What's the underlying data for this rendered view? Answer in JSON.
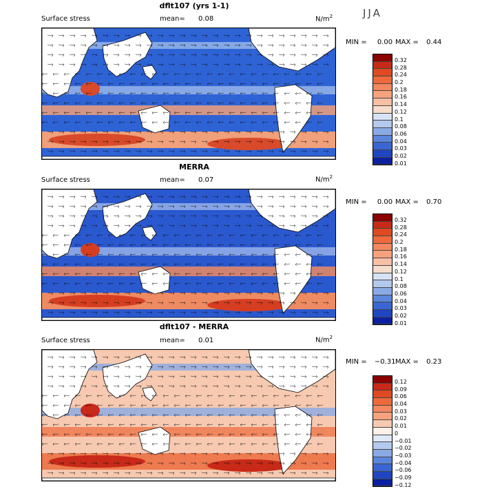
{
  "season": "JJA",
  "units_text": "N/m",
  "units_sup": "2",
  "panels": [
    {
      "title": "dflt107 (yrs 1-1)",
      "field": "Surface stress",
      "mean_label": "mean=",
      "mean_value": "0.08",
      "min_label": "MIN =",
      "min_value": "0.00",
      "max_label": "MAX =",
      "max_value": "0.44",
      "colorbar": {
        "levels": [
          "0.32",
          "0.28",
          "0.24",
          "0.2",
          "0.18",
          "0.16",
          "0.14",
          "0.12",
          "0.1",
          "0.08",
          "0.06",
          "0.04",
          "0.03",
          "0.02",
          "0.01"
        ],
        "colors": [
          "#8b0000",
          "#c82918",
          "#e04a22",
          "#ee6a3c",
          "#f5885e",
          "#f7a27e",
          "#f7bfa3",
          "#f6ddcb",
          "#d6e3f5",
          "#b4c9ee",
          "#8aaae6",
          "#5b86dc",
          "#3a66d3",
          "#1f45c2",
          "#0a20a0"
        ]
      },
      "fill_colors": {
        "ocean": "#2e63d6",
        "band_hi": "#d94a2a",
        "band_mid": "#f0a07a",
        "band_lo": "#9cb9ea",
        "land": "#ffffff"
      }
    },
    {
      "title": "MERRA",
      "field": "Surface stress",
      "mean_label": "mean=",
      "mean_value": "0.07",
      "min_label": "MIN =",
      "min_value": "0.00",
      "max_label": "MAX =",
      "max_value": "0.70",
      "colorbar": {
        "levels": [
          "0.32",
          "0.28",
          "0.24",
          "0.2",
          "0.18",
          "0.16",
          "0.14",
          "0.12",
          "0.1",
          "0.08",
          "0.06",
          "0.04",
          "0.03",
          "0.02",
          "0.01"
        ],
        "colors": [
          "#8b0000",
          "#c82918",
          "#e04a22",
          "#ee6a3c",
          "#f5885e",
          "#f7a27e",
          "#f7bfa3",
          "#f6ddcb",
          "#d6e3f5",
          "#b4c9ee",
          "#8aaae6",
          "#5b86dc",
          "#3a66d3",
          "#1f45c2",
          "#0a20a0"
        ]
      },
      "fill_colors": {
        "ocean": "#2a58cf",
        "band_hi": "#d63e22",
        "band_mid": "#ee8b62",
        "band_lo": "#9db8ea",
        "land": "#ffffff"
      }
    },
    {
      "title": "dflt107 - MERRA",
      "field": "Surface stress",
      "mean_label": "mean=",
      "mean_value": "0.01",
      "min_label": "MIN =",
      "min_value": "−0.31",
      "max_label": "MAX =",
      "max_value": "0.23",
      "colorbar": {
        "levels": [
          "0.12",
          "0.09",
          "0.06",
          "0.04",
          "0.03",
          "0.02",
          "0.01",
          "0",
          "−0.01",
          "−0.02",
          "−0.03",
          "−0.04",
          "−0.06",
          "−0.09",
          "−0.12"
        ],
        "colors": [
          "#8b0000",
          "#c82918",
          "#e04a22",
          "#ee6a3c",
          "#f5885e",
          "#f7a27e",
          "#f6c9b0",
          "#fdf1ea",
          "#dfe8f7",
          "#b4c9ee",
          "#8aaae6",
          "#5b86dc",
          "#3a66d3",
          "#1f45c2",
          "#0a20a0"
        ]
      },
      "fill_colors": {
        "ocean": "#f6c9b0",
        "band_hi": "#c82918",
        "band_mid": "#ee7a50",
        "band_lo": "#8aaae6",
        "land": "#ffffff"
      }
    }
  ]
}
